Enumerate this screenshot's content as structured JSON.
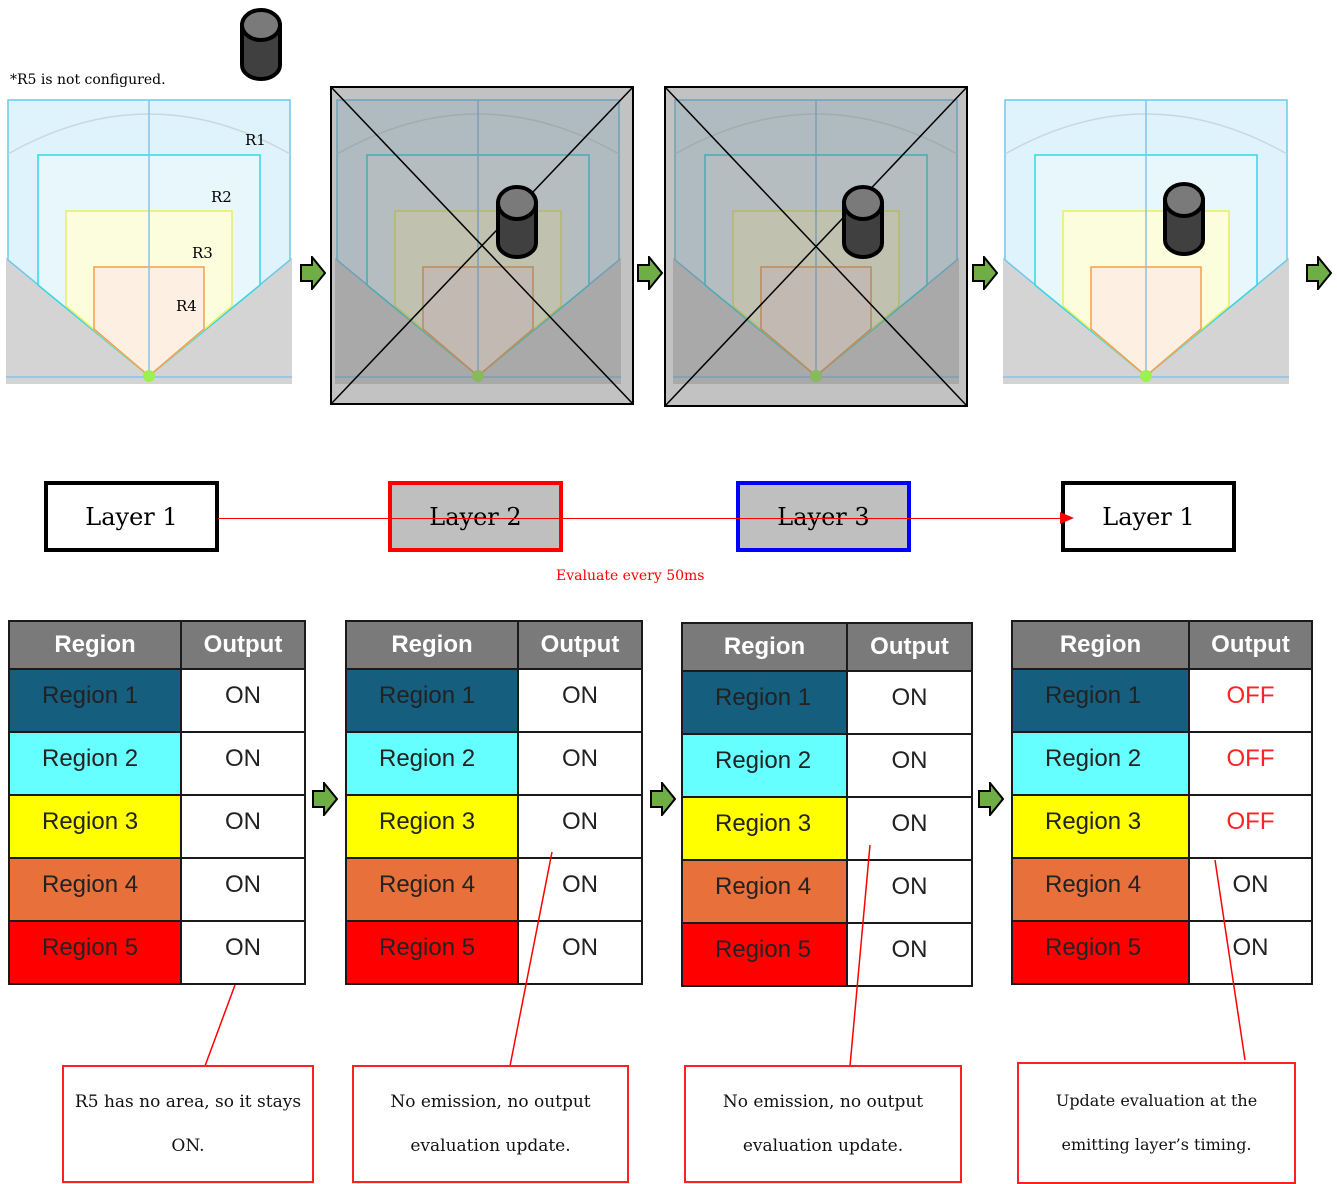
{
  "note": "*R5 is not configured.",
  "region_labels": [
    "R1",
    "R2",
    "R3",
    "R4"
  ],
  "panels": [
    {
      "id": "panel-1",
      "disabled": false
    },
    {
      "id": "panel-2",
      "disabled": true
    },
    {
      "id": "panel-3",
      "disabled": true
    },
    {
      "id": "panel-4",
      "disabled": false
    }
  ],
  "layers": {
    "box1": "Layer 1",
    "box2": "Layer 2",
    "box3": "Layer 3",
    "box4": "Layer 1",
    "border_colors": [
      "#000000",
      "#ff0000",
      "#0000ff",
      "#000000"
    ]
  },
  "timing_label": "Evaluate every 50ms",
  "tables": [
    {
      "header": {
        "region": "Region",
        "output": "Output"
      },
      "rows": [
        {
          "region": "Region 1",
          "output": "ON"
        },
        {
          "region": "Region 2",
          "output": "ON"
        },
        {
          "region": "Region 3",
          "output": "ON"
        },
        {
          "region": "Region 4",
          "output": "ON"
        },
        {
          "region": "Region 5",
          "output": "ON"
        }
      ]
    },
    {
      "header": {
        "region": "Region",
        "output": "Output"
      },
      "rows": [
        {
          "region": "Region 1",
          "output": "ON"
        },
        {
          "region": "Region 2",
          "output": "ON"
        },
        {
          "region": "Region 3",
          "output": "ON"
        },
        {
          "region": "Region 4",
          "output": "ON"
        },
        {
          "region": "Region 5",
          "output": "ON"
        }
      ]
    },
    {
      "header": {
        "region": "Region",
        "output": "Output"
      },
      "rows": [
        {
          "region": "Region 1",
          "output": "ON"
        },
        {
          "region": "Region 2",
          "output": "ON"
        },
        {
          "region": "Region 3",
          "output": "ON"
        },
        {
          "region": "Region 4",
          "output": "ON"
        },
        {
          "region": "Region 5",
          "output": "ON"
        }
      ]
    },
    {
      "header": {
        "region": "Region",
        "output": "Output"
      },
      "rows": [
        {
          "region": "Region 1",
          "output": "OFF"
        },
        {
          "region": "Region 2",
          "output": "OFF"
        },
        {
          "region": "Region 3",
          "output": "OFF"
        },
        {
          "region": "Region 4",
          "output": "ON"
        },
        {
          "region": "Region 5",
          "output": "ON"
        }
      ]
    }
  ],
  "region_colors": [
    "#155e7e",
    "#66ffff",
    "#ffff00",
    "#e8703a",
    "#ff0000"
  ],
  "callouts": {
    "c1": "R5 has no area, so it stays ON.",
    "c2": "No emission, no output evaluation update.",
    "c3": "No emission, no output evaluation update.",
    "c4": "Update evaluation at the emitting layer’s timing."
  }
}
